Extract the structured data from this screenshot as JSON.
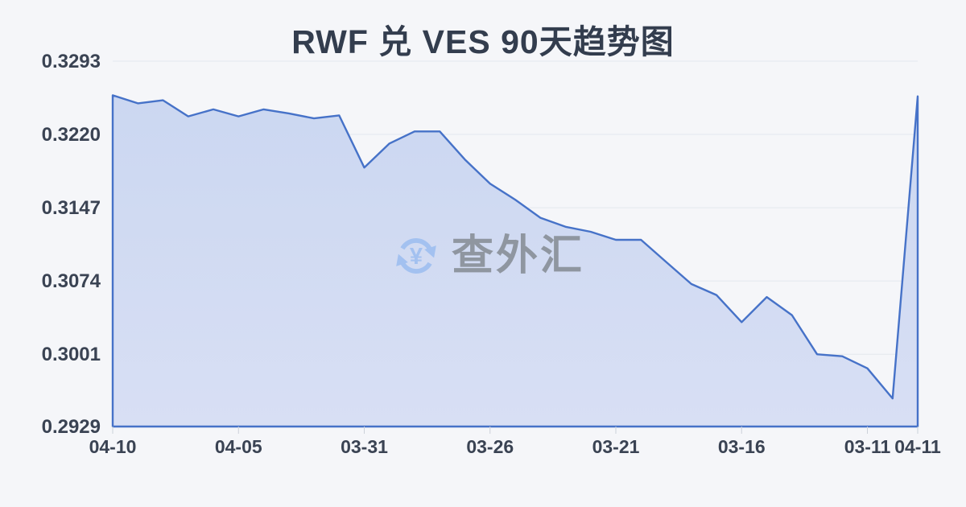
{
  "page": {
    "background_color": "#f5f6f9"
  },
  "watermark": {
    "text": "查外汇",
    "icon": "refresh-yen-icon",
    "icon_symbol": "¥",
    "icon_color": "#a3c1f0",
    "text_color": "#8f96a0"
  },
  "chart_data": {
    "type": "area",
    "title": "RWF 兑 VES 90天趋势图",
    "xlabel": "",
    "ylabel": "",
    "ylim": [
      0.2929,
      0.3293
    ],
    "grid": "horizontal",
    "legend": "none",
    "y_tick_labels": [
      "0.3293",
      "0.3220",
      "0.3147",
      "0.3074",
      "0.3001",
      "0.2929"
    ],
    "x_ticks": [
      {
        "i": 0,
        "label": "04-10"
      },
      {
        "i": 5,
        "label": "04-05"
      },
      {
        "i": 10,
        "label": "03-31"
      },
      {
        "i": 15,
        "label": "03-26"
      },
      {
        "i": 20,
        "label": "03-21"
      },
      {
        "i": 25,
        "label": "03-16"
      },
      {
        "i": 30,
        "label": "03-11"
      },
      {
        "i": 32,
        "label": "04-11"
      }
    ],
    "values": [
      0.3259,
      0.3251,
      0.3254,
      0.3238,
      0.3245,
      0.3238,
      0.3245,
      0.3241,
      0.3236,
      0.3239,
      0.3187,
      0.3211,
      0.3223,
      0.3223,
      0.3195,
      0.3171,
      0.3155,
      0.3137,
      0.3128,
      0.3123,
      0.3115,
      0.3115,
      0.3093,
      0.3071,
      0.306,
      0.3033,
      0.3058,
      0.304,
      0.3001,
      0.2999,
      0.2987,
      0.2957,
      0.3258
    ],
    "line_color": "#4672c8",
    "fill_color_top": "#cbd7f1",
    "fill_color_bottom": "#d8dff4"
  }
}
